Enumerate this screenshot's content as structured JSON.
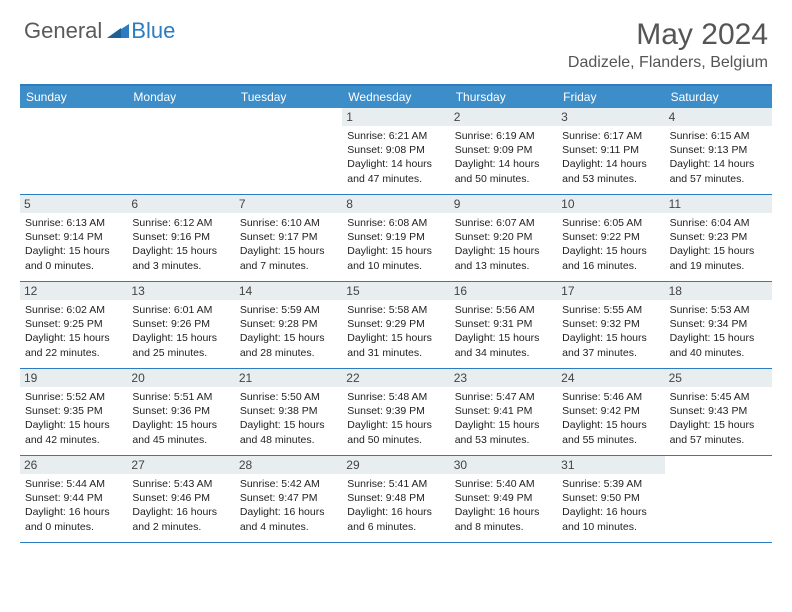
{
  "logo": {
    "part1": "General",
    "part2": "Blue"
  },
  "title": "May 2024",
  "location": "Dadizele, Flanders, Belgium",
  "colors": {
    "accent": "#3d8dc9",
    "border": "#2d7cc0",
    "day_bg": "#e8edf0",
    "text": "#222222",
    "header_text": "#555555"
  },
  "weekdays": [
    "Sunday",
    "Monday",
    "Tuesday",
    "Wednesday",
    "Thursday",
    "Friday",
    "Saturday"
  ],
  "weeks": [
    [
      {
        "num": "",
        "sunrise": "",
        "sunset": "",
        "daylight1": "",
        "daylight2": ""
      },
      {
        "num": "",
        "sunrise": "",
        "sunset": "",
        "daylight1": "",
        "daylight2": ""
      },
      {
        "num": "",
        "sunrise": "",
        "sunset": "",
        "daylight1": "",
        "daylight2": ""
      },
      {
        "num": "1",
        "sunrise": "Sunrise: 6:21 AM",
        "sunset": "Sunset: 9:08 PM",
        "daylight1": "Daylight: 14 hours",
        "daylight2": "and 47 minutes."
      },
      {
        "num": "2",
        "sunrise": "Sunrise: 6:19 AM",
        "sunset": "Sunset: 9:09 PM",
        "daylight1": "Daylight: 14 hours",
        "daylight2": "and 50 minutes."
      },
      {
        "num": "3",
        "sunrise": "Sunrise: 6:17 AM",
        "sunset": "Sunset: 9:11 PM",
        "daylight1": "Daylight: 14 hours",
        "daylight2": "and 53 minutes."
      },
      {
        "num": "4",
        "sunrise": "Sunrise: 6:15 AM",
        "sunset": "Sunset: 9:13 PM",
        "daylight1": "Daylight: 14 hours",
        "daylight2": "and 57 minutes."
      }
    ],
    [
      {
        "num": "5",
        "sunrise": "Sunrise: 6:13 AM",
        "sunset": "Sunset: 9:14 PM",
        "daylight1": "Daylight: 15 hours",
        "daylight2": "and 0 minutes."
      },
      {
        "num": "6",
        "sunrise": "Sunrise: 6:12 AM",
        "sunset": "Sunset: 9:16 PM",
        "daylight1": "Daylight: 15 hours",
        "daylight2": "and 3 minutes."
      },
      {
        "num": "7",
        "sunrise": "Sunrise: 6:10 AM",
        "sunset": "Sunset: 9:17 PM",
        "daylight1": "Daylight: 15 hours",
        "daylight2": "and 7 minutes."
      },
      {
        "num": "8",
        "sunrise": "Sunrise: 6:08 AM",
        "sunset": "Sunset: 9:19 PM",
        "daylight1": "Daylight: 15 hours",
        "daylight2": "and 10 minutes."
      },
      {
        "num": "9",
        "sunrise": "Sunrise: 6:07 AM",
        "sunset": "Sunset: 9:20 PM",
        "daylight1": "Daylight: 15 hours",
        "daylight2": "and 13 minutes."
      },
      {
        "num": "10",
        "sunrise": "Sunrise: 6:05 AM",
        "sunset": "Sunset: 9:22 PM",
        "daylight1": "Daylight: 15 hours",
        "daylight2": "and 16 minutes."
      },
      {
        "num": "11",
        "sunrise": "Sunrise: 6:04 AM",
        "sunset": "Sunset: 9:23 PM",
        "daylight1": "Daylight: 15 hours",
        "daylight2": "and 19 minutes."
      }
    ],
    [
      {
        "num": "12",
        "sunrise": "Sunrise: 6:02 AM",
        "sunset": "Sunset: 9:25 PM",
        "daylight1": "Daylight: 15 hours",
        "daylight2": "and 22 minutes."
      },
      {
        "num": "13",
        "sunrise": "Sunrise: 6:01 AM",
        "sunset": "Sunset: 9:26 PM",
        "daylight1": "Daylight: 15 hours",
        "daylight2": "and 25 minutes."
      },
      {
        "num": "14",
        "sunrise": "Sunrise: 5:59 AM",
        "sunset": "Sunset: 9:28 PM",
        "daylight1": "Daylight: 15 hours",
        "daylight2": "and 28 minutes."
      },
      {
        "num": "15",
        "sunrise": "Sunrise: 5:58 AM",
        "sunset": "Sunset: 9:29 PM",
        "daylight1": "Daylight: 15 hours",
        "daylight2": "and 31 minutes."
      },
      {
        "num": "16",
        "sunrise": "Sunrise: 5:56 AM",
        "sunset": "Sunset: 9:31 PM",
        "daylight1": "Daylight: 15 hours",
        "daylight2": "and 34 minutes."
      },
      {
        "num": "17",
        "sunrise": "Sunrise: 5:55 AM",
        "sunset": "Sunset: 9:32 PM",
        "daylight1": "Daylight: 15 hours",
        "daylight2": "and 37 minutes."
      },
      {
        "num": "18",
        "sunrise": "Sunrise: 5:53 AM",
        "sunset": "Sunset: 9:34 PM",
        "daylight1": "Daylight: 15 hours",
        "daylight2": "and 40 minutes."
      }
    ],
    [
      {
        "num": "19",
        "sunrise": "Sunrise: 5:52 AM",
        "sunset": "Sunset: 9:35 PM",
        "daylight1": "Daylight: 15 hours",
        "daylight2": "and 42 minutes."
      },
      {
        "num": "20",
        "sunrise": "Sunrise: 5:51 AM",
        "sunset": "Sunset: 9:36 PM",
        "daylight1": "Daylight: 15 hours",
        "daylight2": "and 45 minutes."
      },
      {
        "num": "21",
        "sunrise": "Sunrise: 5:50 AM",
        "sunset": "Sunset: 9:38 PM",
        "daylight1": "Daylight: 15 hours",
        "daylight2": "and 48 minutes."
      },
      {
        "num": "22",
        "sunrise": "Sunrise: 5:48 AM",
        "sunset": "Sunset: 9:39 PM",
        "daylight1": "Daylight: 15 hours",
        "daylight2": "and 50 minutes."
      },
      {
        "num": "23",
        "sunrise": "Sunrise: 5:47 AM",
        "sunset": "Sunset: 9:41 PM",
        "daylight1": "Daylight: 15 hours",
        "daylight2": "and 53 minutes."
      },
      {
        "num": "24",
        "sunrise": "Sunrise: 5:46 AM",
        "sunset": "Sunset: 9:42 PM",
        "daylight1": "Daylight: 15 hours",
        "daylight2": "and 55 minutes."
      },
      {
        "num": "25",
        "sunrise": "Sunrise: 5:45 AM",
        "sunset": "Sunset: 9:43 PM",
        "daylight1": "Daylight: 15 hours",
        "daylight2": "and 57 minutes."
      }
    ],
    [
      {
        "num": "26",
        "sunrise": "Sunrise: 5:44 AM",
        "sunset": "Sunset: 9:44 PM",
        "daylight1": "Daylight: 16 hours",
        "daylight2": "and 0 minutes."
      },
      {
        "num": "27",
        "sunrise": "Sunrise: 5:43 AM",
        "sunset": "Sunset: 9:46 PM",
        "daylight1": "Daylight: 16 hours",
        "daylight2": "and 2 minutes."
      },
      {
        "num": "28",
        "sunrise": "Sunrise: 5:42 AM",
        "sunset": "Sunset: 9:47 PM",
        "daylight1": "Daylight: 16 hours",
        "daylight2": "and 4 minutes."
      },
      {
        "num": "29",
        "sunrise": "Sunrise: 5:41 AM",
        "sunset": "Sunset: 9:48 PM",
        "daylight1": "Daylight: 16 hours",
        "daylight2": "and 6 minutes."
      },
      {
        "num": "30",
        "sunrise": "Sunrise: 5:40 AM",
        "sunset": "Sunset: 9:49 PM",
        "daylight1": "Daylight: 16 hours",
        "daylight2": "and 8 minutes."
      },
      {
        "num": "31",
        "sunrise": "Sunrise: 5:39 AM",
        "sunset": "Sunset: 9:50 PM",
        "daylight1": "Daylight: 16 hours",
        "daylight2": "and 10 minutes."
      },
      {
        "num": "",
        "sunrise": "",
        "sunset": "",
        "daylight1": "",
        "daylight2": ""
      }
    ]
  ]
}
